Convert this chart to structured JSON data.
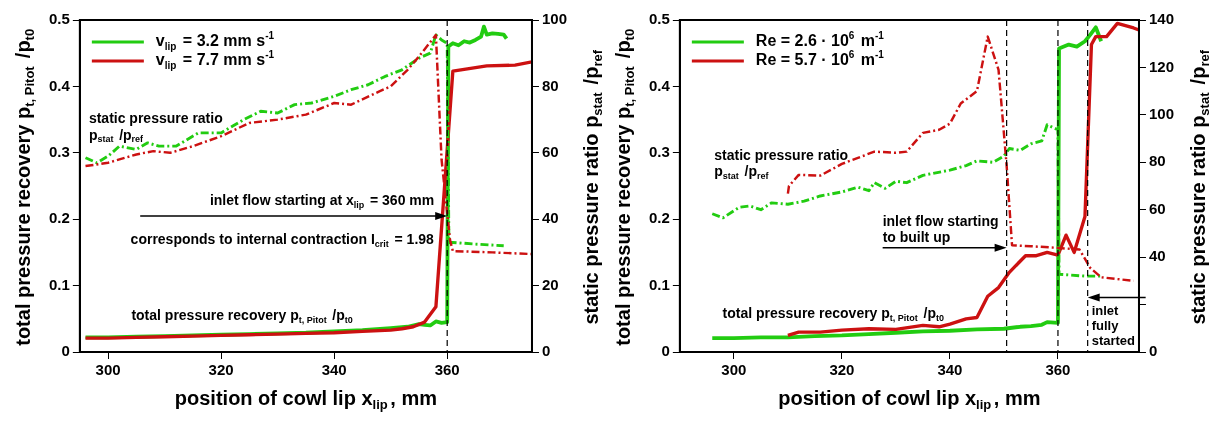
{
  "chart_data": [
    {
      "type": "line",
      "xlabel": "position of cowl lip x$_{lip}$, mm",
      "ylabel": "total pressure recovery p$_{t, Pitot}$ /p$_{t0}$",
      "y2label": "static pressure ratio p$_{stat}$ /p$_{ref}$",
      "xlim": [
        295,
        375
      ],
      "xticks": [
        300,
        320,
        340,
        360
      ],
      "ylim": [
        0,
        0.5
      ],
      "yticks": [
        0,
        0.1,
        0.2,
        0.3,
        0.4,
        0.5
      ],
      "y2lim": [
        0,
        100
      ],
      "y2ticks": [
        0,
        20,
        40,
        60,
        80,
        100
      ],
      "grid": false,
      "marker": "none",
      "legend": "top left",
      "series": [
        {
          "name": "v$_{lip}$ = 3.2 mm s$^{-1}$",
          "color": "#22cc11",
          "x": [
            296,
            300,
            305,
            310,
            315,
            320,
            325,
            330,
            335,
            340,
            345,
            350,
            353,
            355,
            356,
            357,
            358,
            359,
            360,
            360.2,
            361,
            362,
            363,
            364,
            365,
            366,
            366.5,
            367,
            368,
            369,
            370,
            370.5
          ],
          "values": [
            0.022,
            0.022,
            0.023,
            0.024,
            0.025,
            0.026,
            0.027,
            0.028,
            0.029,
            0.031,
            0.033,
            0.036,
            0.038,
            0.042,
            0.041,
            0.04,
            0.046,
            0.044,
            0.045,
            0.46,
            0.465,
            0.462,
            0.468,
            0.466,
            0.47,
            0.475,
            0.49,
            0.478,
            0.48,
            0.479,
            0.478,
            0.472
          ]
        },
        {
          "name": "v$_{lip}$ = 7.7 mm s$^{-1}$",
          "color": "#cc1111",
          "x": [
            296,
            300,
            305,
            310,
            315,
            320,
            325,
            330,
            335,
            340,
            345,
            350,
            352,
            354,
            356,
            358,
            361,
            367,
            372,
            375
          ],
          "values": [
            0.021,
            0.021,
            0.022,
            0.023,
            0.024,
            0.025,
            0.026,
            0.027,
            0.028,
            0.029,
            0.031,
            0.033,
            0.035,
            0.038,
            0.045,
            0.068,
            0.423,
            0.431,
            0.432,
            0.437
          ]
        },
        {
          "color": "#22cc11",
          "axis": "y2",
          "line_style": "dashed",
          "x": [
            296,
            298,
            300,
            302,
            305,
            307,
            309,
            312,
            316,
            320,
            324,
            327,
            330,
            333,
            336,
            340,
            343,
            346,
            349,
            352,
            355,
            357,
            358,
            359,
            360,
            360.3,
            361,
            365,
            370
          ],
          "values": [
            58.5,
            57,
            59,
            62,
            61,
            63,
            62,
            62,
            66,
            66,
            70,
            72.5,
            72,
            74.5,
            75,
            77,
            79,
            80.5,
            83,
            85,
            88.5,
            90,
            95.5,
            94,
            93,
            33,
            33,
            32.5,
            32
          ]
        },
        {
          "color": "#cc1111",
          "axis": "y2",
          "line_style": "dashed",
          "x": [
            296,
            300,
            305,
            308,
            311,
            315,
            320,
            325,
            330,
            335,
            340,
            343,
            348,
            350,
            353,
            355,
            358,
            359,
            360.5,
            361,
            368,
            375
          ],
          "values": [
            56,
            57,
            59.5,
            60.5,
            60,
            62,
            65,
            69,
            70,
            71.5,
            75,
            74.5,
            78.5,
            80,
            85,
            89,
            95.5,
            58,
            33.7,
            30.4,
            30,
            29.5
          ]
        }
      ],
      "ref_lines": [
        {
          "axis": "x",
          "value": 360,
          "line_style": "dashed",
          "color": "#000000"
        }
      ],
      "annotations": [
        "static pressure ratio\np$_{stat}$ /p$_{ref}$",
        {
          "text": "inlet flow starting at x$_{lip}$ = 360 mm",
          "x": 360,
          "y": 0.205
        },
        "corresponds to internal contraction I$_{crit}$ = 1.98",
        "total pressure recovery p$_{t, Pitot}$ /p$_{t0}$"
      ]
    },
    {
      "type": "line",
      "xlabel": "position of cowl lip x$_{lip}$, mm",
      "ylabel": "total pressure recovery p$_{t, Pitot}$ /p$_{t0}$",
      "y2label": "static pressure ratio p$_{stat}$ /p$_{ref}$",
      "xlim": [
        290,
        375
      ],
      "xticks": [
        300,
        320,
        340,
        360
      ],
      "ylim": [
        0,
        0.5
      ],
      "yticks": [
        0,
        0.1,
        0.2,
        0.3,
        0.4,
        0.5
      ],
      "y2lim": [
        0,
        140
      ],
      "y2ticks": [
        0,
        {
          "value": 20,
          "label": null
        },
        40,
        60,
        80,
        100,
        120,
        140
      ],
      "grid": false,
      "marker": "none",
      "legend": "top left",
      "series": [
        {
          "name": "Re = 2.6 · 10$^{6}$ m$^{-1}$",
          "color": "#22cc11",
          "x": [
            296,
            300,
            305,
            310,
            315,
            320,
            325,
            330,
            335,
            340,
            345,
            350,
            353,
            355,
            357,
            358,
            360,
            360.2,
            362,
            363.5,
            365,
            366,
            367,
            368
          ],
          "values": [
            0.021,
            0.021,
            0.022,
            0.022,
            0.024,
            0.025,
            0.027,
            0.029,
            0.031,
            0.032,
            0.034,
            0.035,
            0.038,
            0.039,
            0.041,
            0.045,
            0.044,
            0.457,
            0.463,
            0.46,
            0.468,
            0.478,
            0.489,
            0.468
          ]
        },
        {
          "name": "Re = 5.7 · 10$^{6}$ m$^{-1}$",
          "color": "#cc1111",
          "x": [
            310,
            312,
            316,
            320,
            325,
            330,
            335,
            338,
            340,
            343,
            345,
            347,
            349,
            351,
            354,
            356,
            358,
            360,
            361.5,
            363,
            365,
            366.2,
            367,
            369,
            371,
            374,
            375
          ],
          "values": [
            0.025,
            0.03,
            0.03,
            0.033,
            0.035,
            0.034,
            0.04,
            0.038,
            0.042,
            0.05,
            0.052,
            0.084,
            0.097,
            0.12,
            0.145,
            0.145,
            0.15,
            0.146,
            0.176,
            0.15,
            0.204,
            0.463,
            0.475,
            0.475,
            0.495,
            0.488,
            0.485
          ]
        },
        {
          "color": "#22cc11",
          "axis": "y2",
          "line_style": "dashed",
          "x": [
            296,
            298,
            301,
            303,
            305,
            307,
            310,
            313,
            316,
            320,
            323,
            325,
            326,
            328,
            330,
            332,
            335,
            340,
            343,
            345,
            348,
            350,
            351,
            353,
            355,
            357,
            358,
            360,
            360.2,
            365,
            368
          ],
          "values": [
            58.3,
            56.6,
            61,
            61.6,
            60,
            62.9,
            62.3,
            63.6,
            65.8,
            67.5,
            69.5,
            68,
            71.4,
            69,
            72,
            71.4,
            74.5,
            76.7,
            78.6,
            80.6,
            80,
            82.6,
            85.8,
            85,
            87.8,
            89,
            95.8,
            93.7,
            32.8,
            32,
            32
          ]
        },
        {
          "color": "#cc1111",
          "axis": "y2",
          "line_style": "dashed",
          "x": [
            310,
            310.2,
            312,
            316,
            320,
            326,
            330,
            332,
            335,
            338,
            340,
            342,
            345,
            347,
            349,
            350.5,
            351.5,
            355,
            360,
            364,
            366,
            368,
            374
          ],
          "values": [
            66.8,
            70,
            74.7,
            74.4,
            79.3,
            84.5,
            84,
            84.5,
            92.4,
            93.7,
            96.3,
            104.8,
            110,
            133,
            119,
            78.6,
            45,
            44.6,
            43.9,
            43.2,
            35.4,
            31.5,
            30
          ]
        }
      ],
      "ref_lines": [
        {
          "axis": "x",
          "value": 350.5,
          "line_style": "dashed",
          "color": "#000000"
        },
        {
          "axis": "x",
          "value": 360,
          "line_style": "dashed",
          "color": "#000000"
        },
        {
          "axis": "x",
          "value": 365.5,
          "line_style": "dashed",
          "color": "#000000"
        }
      ],
      "annotations": [
        "static pressure ratio\np$_{stat}$ /p$_{ref}$",
        {
          "text": "inlet flow starting\nto built up",
          "x": 350.5,
          "y": 0.157
        },
        "total pressure recovery p$_{t, Pitot}$ /p$_{t0}$",
        {
          "text": "inlet\nfully\nstarted",
          "x": 365.5,
          "y": 0.082
        }
      ]
    }
  ]
}
